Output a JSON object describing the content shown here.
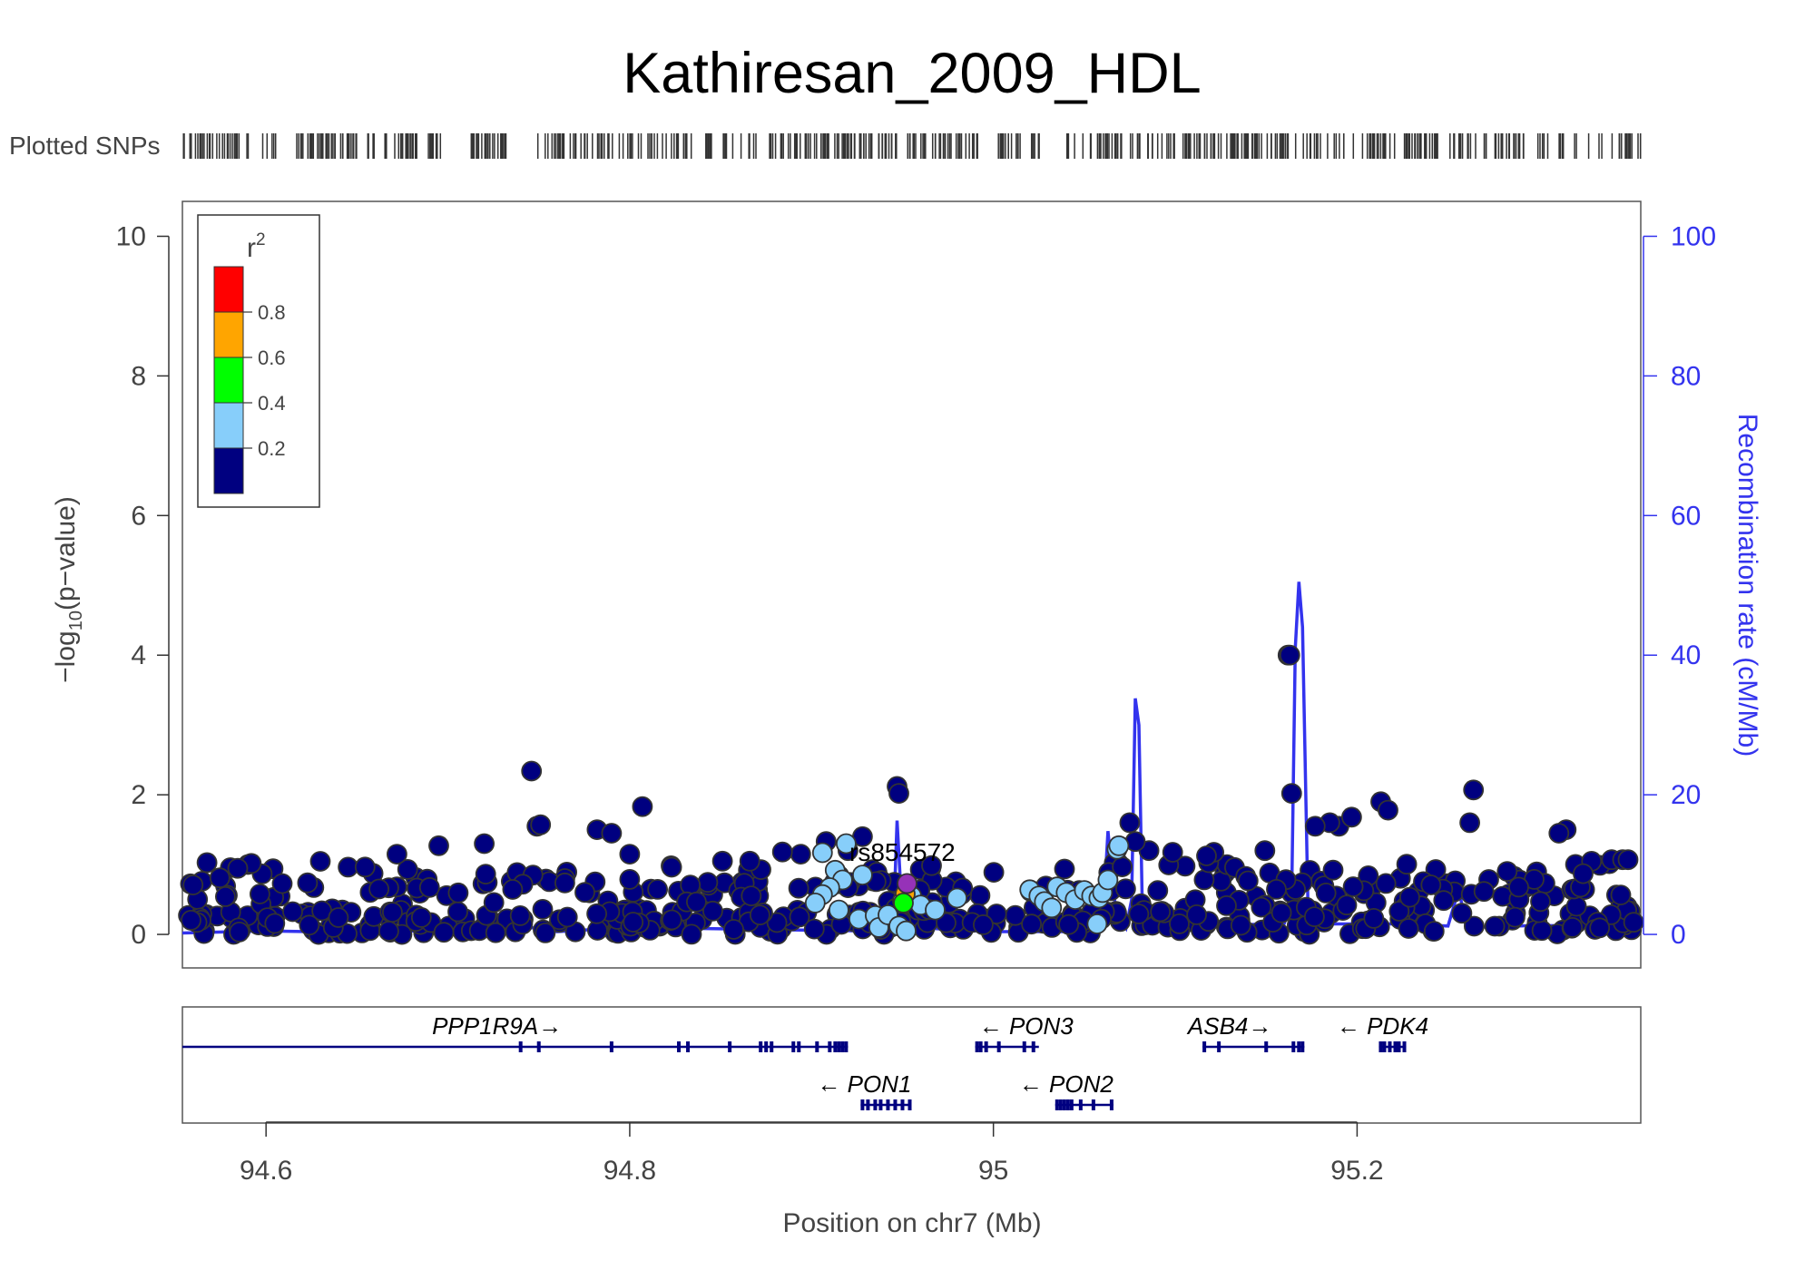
{
  "title": "Kathiresan_2009_HDL",
  "plotted_snps_label": "Plotted SNPs",
  "legend": {
    "title": "r",
    "title_sup": "2",
    "bins": [
      {
        "label": "",
        "color": "#FF0000"
      },
      {
        "label": "0.8",
        "color": "#FFA500"
      },
      {
        "label": "0.6",
        "color": "#00FF00"
      },
      {
        "label": "0.4",
        "color": "#87CEFA"
      },
      {
        "label": "0.2",
        "color": "#000080"
      }
    ],
    "placement": "top-left"
  },
  "chart_data": {
    "type": "scatter",
    "title": "Kathiresan_2009_HDL",
    "xlabel": "Position on chr7 (Mb)",
    "ylabel_prefix": "−log",
    "ylabel_sub": "10",
    "ylabel_suffix": "(p−value)",
    "y2label": "Recombination rate (cM/Mb)",
    "xlim": [
      94.554,
      95.356
    ],
    "ylim": [
      -0.48,
      10.5
    ],
    "y2lim": [
      -4.8,
      105
    ],
    "xticks": [
      "94.6",
      "94.8",
      "95",
      "95.2"
    ],
    "xtick_values": [
      94.6,
      94.8,
      95.0,
      95.2
    ],
    "yticks": [
      "0",
      "2",
      "4",
      "6",
      "8",
      "10"
    ],
    "ytick_values": [
      0,
      2,
      4,
      6,
      8,
      10
    ],
    "y2ticks": [
      "0",
      "20",
      "40",
      "60",
      "80",
      "100"
    ],
    "y2tick_values": [
      0,
      20,
      40,
      60,
      80,
      100
    ],
    "lead_snp": {
      "name": "rs854572",
      "x": 94.9525,
      "y": 0.73,
      "color": "#9632B8"
    },
    "colors": {
      "navy": "#000080",
      "lightblue": "#87CEFA",
      "green": "#00FF00",
      "orange": "#FFA500",
      "red": "#FF0000",
      "recomb": "#3333EE"
    },
    "high_points": [
      [
        94.746,
        2.34
      ],
      [
        94.749,
        1.55
      ],
      [
        94.751,
        1.57
      ],
      [
        94.807,
        1.83
      ],
      [
        94.782,
        1.5
      ],
      [
        94.79,
        1.45
      ],
      [
        94.947,
        2.12
      ],
      [
        94.948,
        2.02
      ],
      [
        95.162,
        4.0
      ],
      [
        95.163,
        4.0
      ],
      [
        95.164,
        2.02
      ],
      [
        95.075,
        1.6
      ],
      [
        95.078,
        1.33
      ],
      [
        95.213,
        1.9
      ],
      [
        95.217,
        1.78
      ],
      [
        95.262,
        1.6
      ],
      [
        95.264,
        2.07
      ],
      [
        95.19,
        1.55
      ],
      [
        95.185,
        1.6
      ],
      [
        95.197,
        1.68
      ],
      [
        95.177,
        1.55
      ],
      [
        94.695,
        1.27
      ],
      [
        94.672,
        1.15
      ],
      [
        94.72,
        1.3
      ],
      [
        94.851,
        1.05
      ],
      [
        94.866,
        1.05
      ],
      [
        94.894,
        1.15
      ],
      [
        94.908,
        1.33
      ],
      [
        94.928,
        1.4
      ],
      [
        94.92,
        1.2
      ],
      [
        94.8,
        1.15
      ],
      [
        94.884,
        1.18
      ],
      [
        95.315,
        1.5
      ],
      [
        95.311,
        1.45
      ],
      [
        95.34,
        1.07
      ],
      [
        95.346,
        1.07
      ],
      [
        95.349,
        1.07
      ]
    ],
    "ld_points": [
      [
        94.906,
        1.17
      ],
      [
        94.919,
        1.3
      ],
      [
        94.913,
        0.92
      ],
      [
        94.928,
        0.85
      ],
      [
        94.917,
        0.78
      ],
      [
        94.91,
        0.67
      ],
      [
        94.906,
        0.57
      ],
      [
        94.902,
        0.45
      ],
      [
        94.915,
        0.35
      ],
      [
        94.926,
        0.22
      ],
      [
        94.935,
        0.27
      ],
      [
        94.937,
        0.1
      ],
      [
        94.942,
        0.28
      ],
      [
        94.95,
        0.48
      ],
      [
        94.955,
        0.55
      ],
      [
        94.96,
        0.42
      ],
      [
        94.968,
        0.35
      ],
      [
        94.98,
        0.52
      ],
      [
        94.948,
        0.12
      ],
      [
        94.952,
        0.05
      ],
      [
        95.02,
        0.64
      ],
      [
        95.025,
        0.55
      ],
      [
        95.028,
        0.47
      ],
      [
        95.032,
        0.38
      ],
      [
        95.035,
        0.68
      ],
      [
        95.04,
        0.6
      ],
      [
        95.045,
        0.5
      ],
      [
        95.05,
        0.63
      ],
      [
        95.054,
        0.55
      ],
      [
        95.058,
        0.52
      ],
      [
        95.06,
        0.6
      ],
      [
        95.063,
        0.78
      ],
      [
        95.057,
        0.15
      ],
      [
        95.068,
        1.22
      ],
      [
        95.069,
        1.27
      ]
    ],
    "lead_neighbors": [
      {
        "x": 94.9515,
        "y": 0.58,
        "c": "#FFA500"
      },
      {
        "x": 94.9505,
        "y": 0.45,
        "c": "#00FF00"
      }
    ],
    "recombination": [
      [
        94.554,
        0.2
      ],
      [
        94.6,
        0.5
      ],
      [
        94.65,
        0.3
      ],
      [
        94.7,
        0.6
      ],
      [
        94.74,
        1.2
      ],
      [
        94.76,
        0.4
      ],
      [
        94.8,
        1.0
      ],
      [
        94.85,
        0.8
      ],
      [
        94.9,
        0.6
      ],
      [
        94.93,
        0.5
      ],
      [
        94.945,
        1.5
      ],
      [
        94.947,
        16.3
      ],
      [
        94.95,
        2.0
      ],
      [
        94.955,
        8.0
      ],
      [
        94.96,
        1.0
      ],
      [
        94.98,
        0.6
      ],
      [
        95.0,
        0.4
      ],
      [
        95.04,
        0.4
      ],
      [
        95.06,
        1.0
      ],
      [
        95.063,
        14.8
      ],
      [
        95.067,
        4.0
      ],
      [
        95.073,
        1.0
      ],
      [
        95.076,
        5.0
      ],
      [
        95.078,
        33.8
      ],
      [
        95.08,
        30.0
      ],
      [
        95.082,
        2.0
      ],
      [
        95.12,
        1.2
      ],
      [
        95.16,
        1.6
      ],
      [
        95.164,
        5.0
      ],
      [
        95.166,
        41.0
      ],
      [
        95.168,
        50.5
      ],
      [
        95.17,
        44.0
      ],
      [
        95.173,
        4.0
      ],
      [
        95.18,
        1.5
      ],
      [
        95.22,
        1.5
      ],
      [
        95.25,
        1.2
      ],
      [
        95.256,
        6.5
      ],
      [
        95.26,
        1.0
      ],
      [
        95.3,
        1.3
      ],
      [
        95.356,
        1.0
      ]
    ],
    "genes_row1": [
      {
        "name": "PPP1R9A",
        "arrow": "→",
        "start": 94.554,
        "end": 94.92,
        "label_x": 94.727,
        "exons": [
          94.74,
          94.75,
          94.79,
          94.827,
          94.832,
          94.855,
          94.872,
          94.875,
          94.878,
          94.89,
          94.893,
          94.903,
          94.91,
          94.913,
          94.915,
          94.917,
          94.919
        ]
      },
      {
        "name": "PON3",
        "arrow": "←",
        "start": 94.99,
        "end": 95.025,
        "label_x": 95.018,
        "arrow_side": "left",
        "exons": [
          94.991,
          94.993,
          94.996,
          95.003,
          95.017,
          95.022
        ]
      },
      {
        "name": "ASB4",
        "arrow": "→",
        "start": 95.115,
        "end": 95.171,
        "label_x": 95.13,
        "exons": [
          95.116,
          95.124,
          95.15,
          95.165,
          95.168,
          95.17
        ]
      },
      {
        "name": "PDK4",
        "arrow": "←",
        "start": 95.212,
        "end": 95.227,
        "label_x": 95.214,
        "arrow_side": "left",
        "exons": [
          95.213,
          95.215,
          95.218,
          95.221,
          95.223,
          95.226
        ]
      }
    ],
    "genes_row2": [
      {
        "name": "PON1",
        "arrow": "←",
        "start": 94.927,
        "end": 94.955,
        "label_x": 94.929,
        "arrow_side": "left",
        "exons": [
          94.928,
          94.931,
          94.935,
          94.938,
          94.942,
          94.946,
          94.95,
          94.954
        ]
      },
      {
        "name": "PON2",
        "arrow": "←",
        "start": 95.034,
        "end": 95.066,
        "label_x": 95.04,
        "arrow_side": "left",
        "exons": [
          95.035,
          95.037,
          95.039,
          95.041,
          95.043,
          95.048,
          95.055,
          95.065
        ]
      }
    ]
  }
}
